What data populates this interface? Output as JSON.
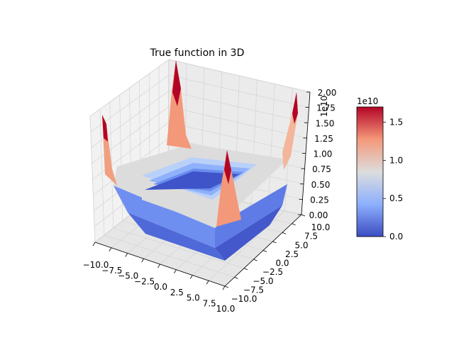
{
  "chart_data": {
    "type": "surface3d",
    "title": "True function in 3D",
    "xlabel": "",
    "ylabel": "",
    "zlabel": "",
    "x": {
      "lim": [
        -10,
        10
      ],
      "ticks": [
        "−10.0",
        "−7.5",
        "−5.0",
        "−2.5",
        "0.0",
        "2.5",
        "5.0",
        "7.5",
        "10.0"
      ]
    },
    "y": {
      "lim": [
        -10,
        10
      ],
      "ticks": [
        "−10.0",
        "−7.5",
        "−5.0",
        "−2.5",
        "0.0",
        "2.5",
        "5.0",
        "7.5",
        "10.0"
      ]
    },
    "z": {
      "lim": [
        0,
        2
      ],
      "offset_text": "1e10",
      "ticks": [
        "0.00",
        "0.25",
        "0.50",
        "0.75",
        "1.00",
        "1.25",
        "1.50",
        "1.75",
        "2.00"
      ]
    },
    "colormap": "coolwarm",
    "colorbar": {
      "offset_text": "1e10",
      "range": [
        0,
        1.7
      ],
      "ticks": [
        "0.0",
        "0.5",
        "1.0",
        "1.5"
      ]
    },
    "surface": {
      "description_levels": [
        0.0,
        0.3,
        0.6,
        0.85,
        1.0
      ],
      "corner_peaks": [
        1.3,
        2.0,
        0.9,
        1.5
      ],
      "grid": true
    }
  }
}
